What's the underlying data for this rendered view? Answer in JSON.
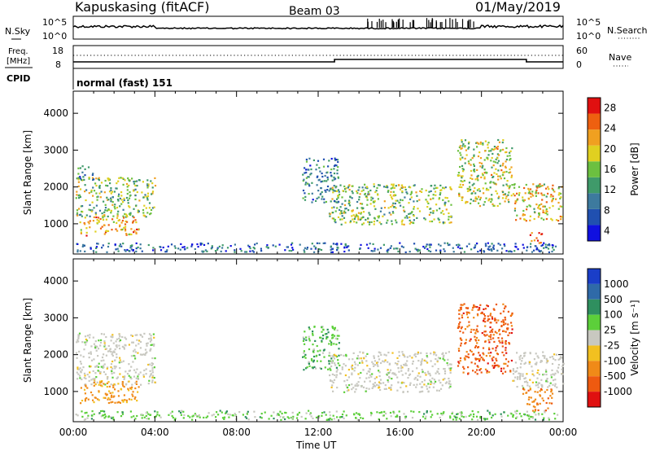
{
  "header": {
    "station": "Kapuskasing (fitACF)",
    "beam": "Beam 03",
    "date": "01/May/2019"
  },
  "noise_panel": {
    "left_label": "N.Sky",
    "right_label": "N.Search",
    "left_ticks": [
      "10^5",
      "10^0"
    ],
    "right_ticks": [
      "10^5",
      "10^0"
    ]
  },
  "freq_panel": {
    "left_label_line1": "Freq.",
    "left_label_line2": "[MHz]",
    "right_label": "Nave",
    "left_ticks": [
      "18",
      "8"
    ],
    "right_ticks": [
      "60",
      "0"
    ]
  },
  "cpid": {
    "label": "CPID",
    "value": "normal (fast) 151"
  },
  "colors": {
    "power_scale": [
      "#1010e0",
      "#2050b0",
      "#3d7a9e",
      "#3f9a6a",
      "#6cc040",
      "#e0d020",
      "#f0a020",
      "#ee6010",
      "#e01010"
    ],
    "velocity_scale": [
      "#1a3ec8",
      "#2f6aa8",
      "#2f8f5f",
      "#5ccf3a",
      "#c8c8c0",
      "#f2c020",
      "#f08a18",
      "#ee5a10",
      "#e01010"
    ]
  },
  "chart_data": [
    {
      "type": "heatmap",
      "name": "power",
      "ylabel": "Slant Range [km]",
      "ylim": [
        180,
        4600
      ],
      "yticks": [
        "1000",
        "2000",
        "3000",
        "4000"
      ],
      "xlim_hours": [
        0,
        24
      ],
      "colorbar": {
        "label": "Power [dB]",
        "ticks": [
          "4",
          "8",
          "12",
          "16",
          "20",
          "24",
          "28"
        ],
        "range": [
          2,
          30
        ]
      },
      "echo_regions": [
        {
          "t0": 0.1,
          "t1": 4.0,
          "r0": 1200,
          "r1": 2300,
          "value": 16
        },
        {
          "t0": 0.3,
          "t1": 3.2,
          "r0": 700,
          "r1": 1200,
          "value": 22
        },
        {
          "t0": 0.2,
          "t1": 1.0,
          "r0": 2200,
          "r1": 2600,
          "value": 10
        },
        {
          "t0": 0.1,
          "t1": 23.8,
          "r0": 250,
          "r1": 500,
          "value": 8
        },
        {
          "t0": 11.2,
          "t1": 13.0,
          "r0": 1600,
          "r1": 2800,
          "value": 10
        },
        {
          "t0": 12.5,
          "t1": 18.5,
          "r0": 1000,
          "r1": 2100,
          "value": 16
        },
        {
          "t0": 18.8,
          "t1": 21.5,
          "r0": 1500,
          "r1": 3300,
          "value": 18
        },
        {
          "t0": 21.5,
          "t1": 24.0,
          "r0": 1100,
          "r1": 2100,
          "value": 20
        },
        {
          "t0": 22.3,
          "t1": 23.0,
          "r0": 500,
          "r1": 800,
          "value": 28
        }
      ]
    },
    {
      "type": "heatmap",
      "name": "velocity",
      "ylabel": "Slant Range [km]",
      "ylim": [
        180,
        4600
      ],
      "yticks": [
        "1000",
        "2000",
        "3000",
        "4000"
      ],
      "xlim_hours": [
        0,
        24
      ],
      "xticks": [
        "00:00",
        "04:00",
        "08:00",
        "12:00",
        "16:00",
        "20:00",
        "00:00"
      ],
      "xlabel": "Time UT",
      "colorbar": {
        "label": "Velocity [m s^-1]",
        "ticks": [
          "1000",
          "500",
          "100",
          "25",
          "-25",
          "-100",
          "-500",
          "-1000"
        ]
      },
      "echo_regions": [
        {
          "t0": 0.1,
          "t1": 4.0,
          "r0": 1200,
          "r1": 2600,
          "value": 0
        },
        {
          "t0": 0.3,
          "t1": 3.2,
          "r0": 700,
          "r1": 1300,
          "value": -150
        },
        {
          "t0": 0.1,
          "t1": 23.8,
          "r0": 250,
          "r1": 500,
          "value": 60
        },
        {
          "t0": 11.2,
          "t1": 13.0,
          "r0": 1600,
          "r1": 2800,
          "value": 80
        },
        {
          "t0": 12.5,
          "t1": 18.5,
          "r0": 1000,
          "r1": 2100,
          "value": 0
        },
        {
          "t0": 18.8,
          "t1": 21.5,
          "r0": 1500,
          "r1": 3400,
          "value": -700
        },
        {
          "t0": 21.5,
          "t1": 24.0,
          "r0": 1100,
          "r1": 2100,
          "value": 0
        },
        {
          "t0": 22.0,
          "t1": 23.5,
          "r0": 500,
          "r1": 1100,
          "value": -400
        }
      ]
    }
  ]
}
